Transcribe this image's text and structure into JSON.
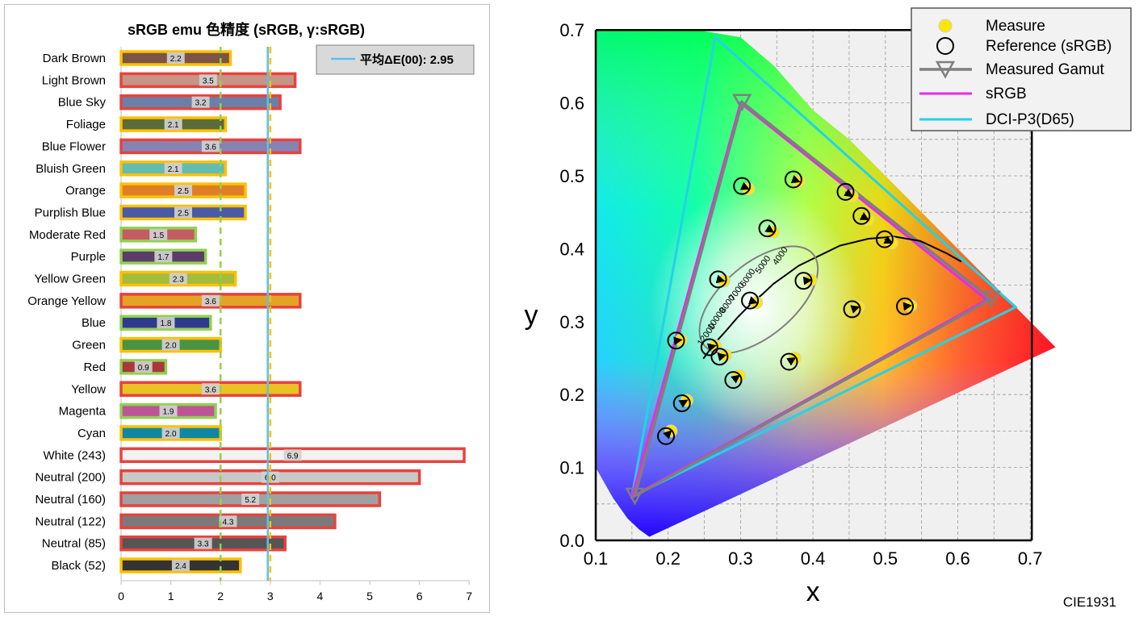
{
  "chart_data": [
    {
      "type": "bar",
      "title": "sRGB emu 色精度 (sRGB, γ:sRGB)",
      "legend": {
        "label": "平均ΔE(00): 2.95",
        "position": "top-right"
      },
      "average": 2.95,
      "xlim": [
        0,
        7
      ],
      "xticks": [
        "0",
        "1",
        "2",
        "3",
        "4",
        "5",
        "6",
        "7"
      ],
      "reference_lines": [
        2,
        3
      ],
      "categories": [
        "Dark Brown",
        "Light Brown",
        "Blue Sky",
        "Foliage",
        "Blue Flower",
        "Bluish Green",
        "Orange",
        "Purplish Blue",
        "Moderate Red",
        "Purple",
        "Yellow Green",
        "Orange Yellow",
        "Blue",
        "Green",
        "Red",
        "Yellow",
        "Magenta",
        "Cyan",
        "White (243)",
        "Neutral (200)",
        "Neutral (160)",
        "Neutral (122)",
        "Neutral (85)",
        "Black (52)"
      ],
      "values": [
        2.2,
        3.5,
        3.2,
        2.1,
        3.6,
        2.1,
        2.5,
        2.5,
        1.5,
        1.7,
        2.3,
        3.6,
        1.8,
        2.0,
        0.9,
        3.6,
        1.9,
        2.0,
        6.9,
        6.0,
        5.2,
        4.3,
        3.3,
        2.4
      ],
      "labels": [
        "2.2",
        "3.5",
        "3.2",
        "2.1",
        "3.6",
        "2.1",
        "2.5",
        "2.5",
        "1.5",
        "1.7",
        "2.3",
        "3.6",
        "1.8",
        "2.0",
        "0.9",
        "3.6",
        "1.9",
        "2.0",
        "6.9",
        "6.0",
        "5.2",
        "4.3",
        "3.3",
        "2.4"
      ],
      "fill_colors": [
        "#7a5444",
        "#c69585",
        "#6a80a8",
        "#5b6b3a",
        "#8683b3",
        "#63bcb2",
        "#de7f28",
        "#4b5aa6",
        "#c35d62",
        "#5b3c6a",
        "#a3bc3c",
        "#e3a325",
        "#2f3a8d",
        "#4a9244",
        "#a8383c",
        "#e9c226",
        "#bc5596",
        "#0f87a1",
        "#f2f2f2",
        "#c8c8c8",
        "#a0a0a0",
        "#7a7a7a",
        "#555555",
        "#343434"
      ],
      "border_colors": {
        "green": "#92d050",
        "yellow": "#ffc000",
        "red": "#e8423d"
      }
    },
    {
      "type": "scatter",
      "xlabel": "x",
      "ylabel": "y",
      "xlim": [
        0.1,
        0.7
      ],
      "ylim": [
        0.0,
        0.7
      ],
      "xticks": [
        "0.1",
        "0.2",
        "0.3",
        "0.4",
        "0.5",
        "0.6",
        "0.7"
      ],
      "yticks": [
        "0.0",
        "0.1",
        "0.2",
        "0.3",
        "0.4",
        "0.5",
        "0.6",
        "0.7"
      ],
      "caption": "CIE1931",
      "legend": [
        {
          "name": "Measure",
          "marker": "yellow-dot"
        },
        {
          "name": "Reference (sRGB)",
          "marker": "black-circle"
        },
        {
          "name": "Measured Gamut",
          "marker": "gray-triangle"
        },
        {
          "name": "sRGB",
          "marker": "magenta-line"
        },
        {
          "name": "DCI-P3(D65)",
          "marker": "cyan-line"
        }
      ],
      "legend_position": "top-right",
      "srgb_gamut": [
        [
          0.64,
          0.33
        ],
        [
          0.3,
          0.6
        ],
        [
          0.15,
          0.06
        ]
      ],
      "dcip3_gamut": [
        [
          0.68,
          0.32
        ],
        [
          0.265,
          0.69
        ],
        [
          0.15,
          0.06
        ]
      ],
      "measured_gamut": [
        [
          0.646,
          0.331
        ],
        [
          0.302,
          0.601
        ],
        [
          0.154,
          0.061
        ]
      ],
      "planckian_labels": [
        "4000",
        "5000",
        "6000",
        "7000",
        "8000",
        "10000",
        "12000"
      ],
      "points": [
        {
          "ref": [
            0.302,
            0.486
          ],
          "meas": [
            0.311,
            0.482
          ]
        },
        {
          "ref": [
            0.373,
            0.495
          ],
          "meas": [
            0.381,
            0.492
          ]
        },
        {
          "ref": [
            0.445,
            0.478
          ],
          "meas": [
            0.454,
            0.472
          ]
        },
        {
          "ref": [
            0.467,
            0.445
          ],
          "meas": [
            0.476,
            0.44
          ]
        },
        {
          "ref": [
            0.499,
            0.413
          ],
          "meas": [
            0.509,
            0.408
          ]
        },
        {
          "ref": [
            0.337,
            0.428
          ],
          "meas": [
            0.345,
            0.423
          ]
        },
        {
          "ref": [
            0.269,
            0.358
          ],
          "meas": [
            0.277,
            0.356
          ]
        },
        {
          "ref": [
            0.313,
            0.329
          ],
          "meas": [
            0.322,
            0.326
          ]
        },
        {
          "ref": [
            0.387,
            0.356
          ],
          "meas": [
            0.397,
            0.357
          ]
        },
        {
          "ref": [
            0.454,
            0.317
          ],
          "meas": [
            0.463,
            0.32
          ]
        },
        {
          "ref": [
            0.527,
            0.321
          ],
          "meas": [
            0.535,
            0.322
          ]
        },
        {
          "ref": [
            0.211,
            0.274
          ],
          "meas": [
            0.218,
            0.275
          ]
        },
        {
          "ref": [
            0.257,
            0.265
          ],
          "meas": [
            0.265,
            0.267
          ]
        },
        {
          "ref": [
            0.271,
            0.252
          ],
          "meas": [
            0.279,
            0.254
          ]
        },
        {
          "ref": [
            0.367,
            0.245
          ],
          "meas": [
            0.375,
            0.25
          ]
        },
        {
          "ref": [
            0.29,
            0.22
          ],
          "meas": [
            0.298,
            0.226
          ]
        },
        {
          "ref": [
            0.219,
            0.188
          ],
          "meas": [
            0.226,
            0.192
          ]
        },
        {
          "ref": [
            0.197,
            0.143
          ],
          "meas": [
            0.204,
            0.15
          ]
        }
      ]
    }
  ]
}
